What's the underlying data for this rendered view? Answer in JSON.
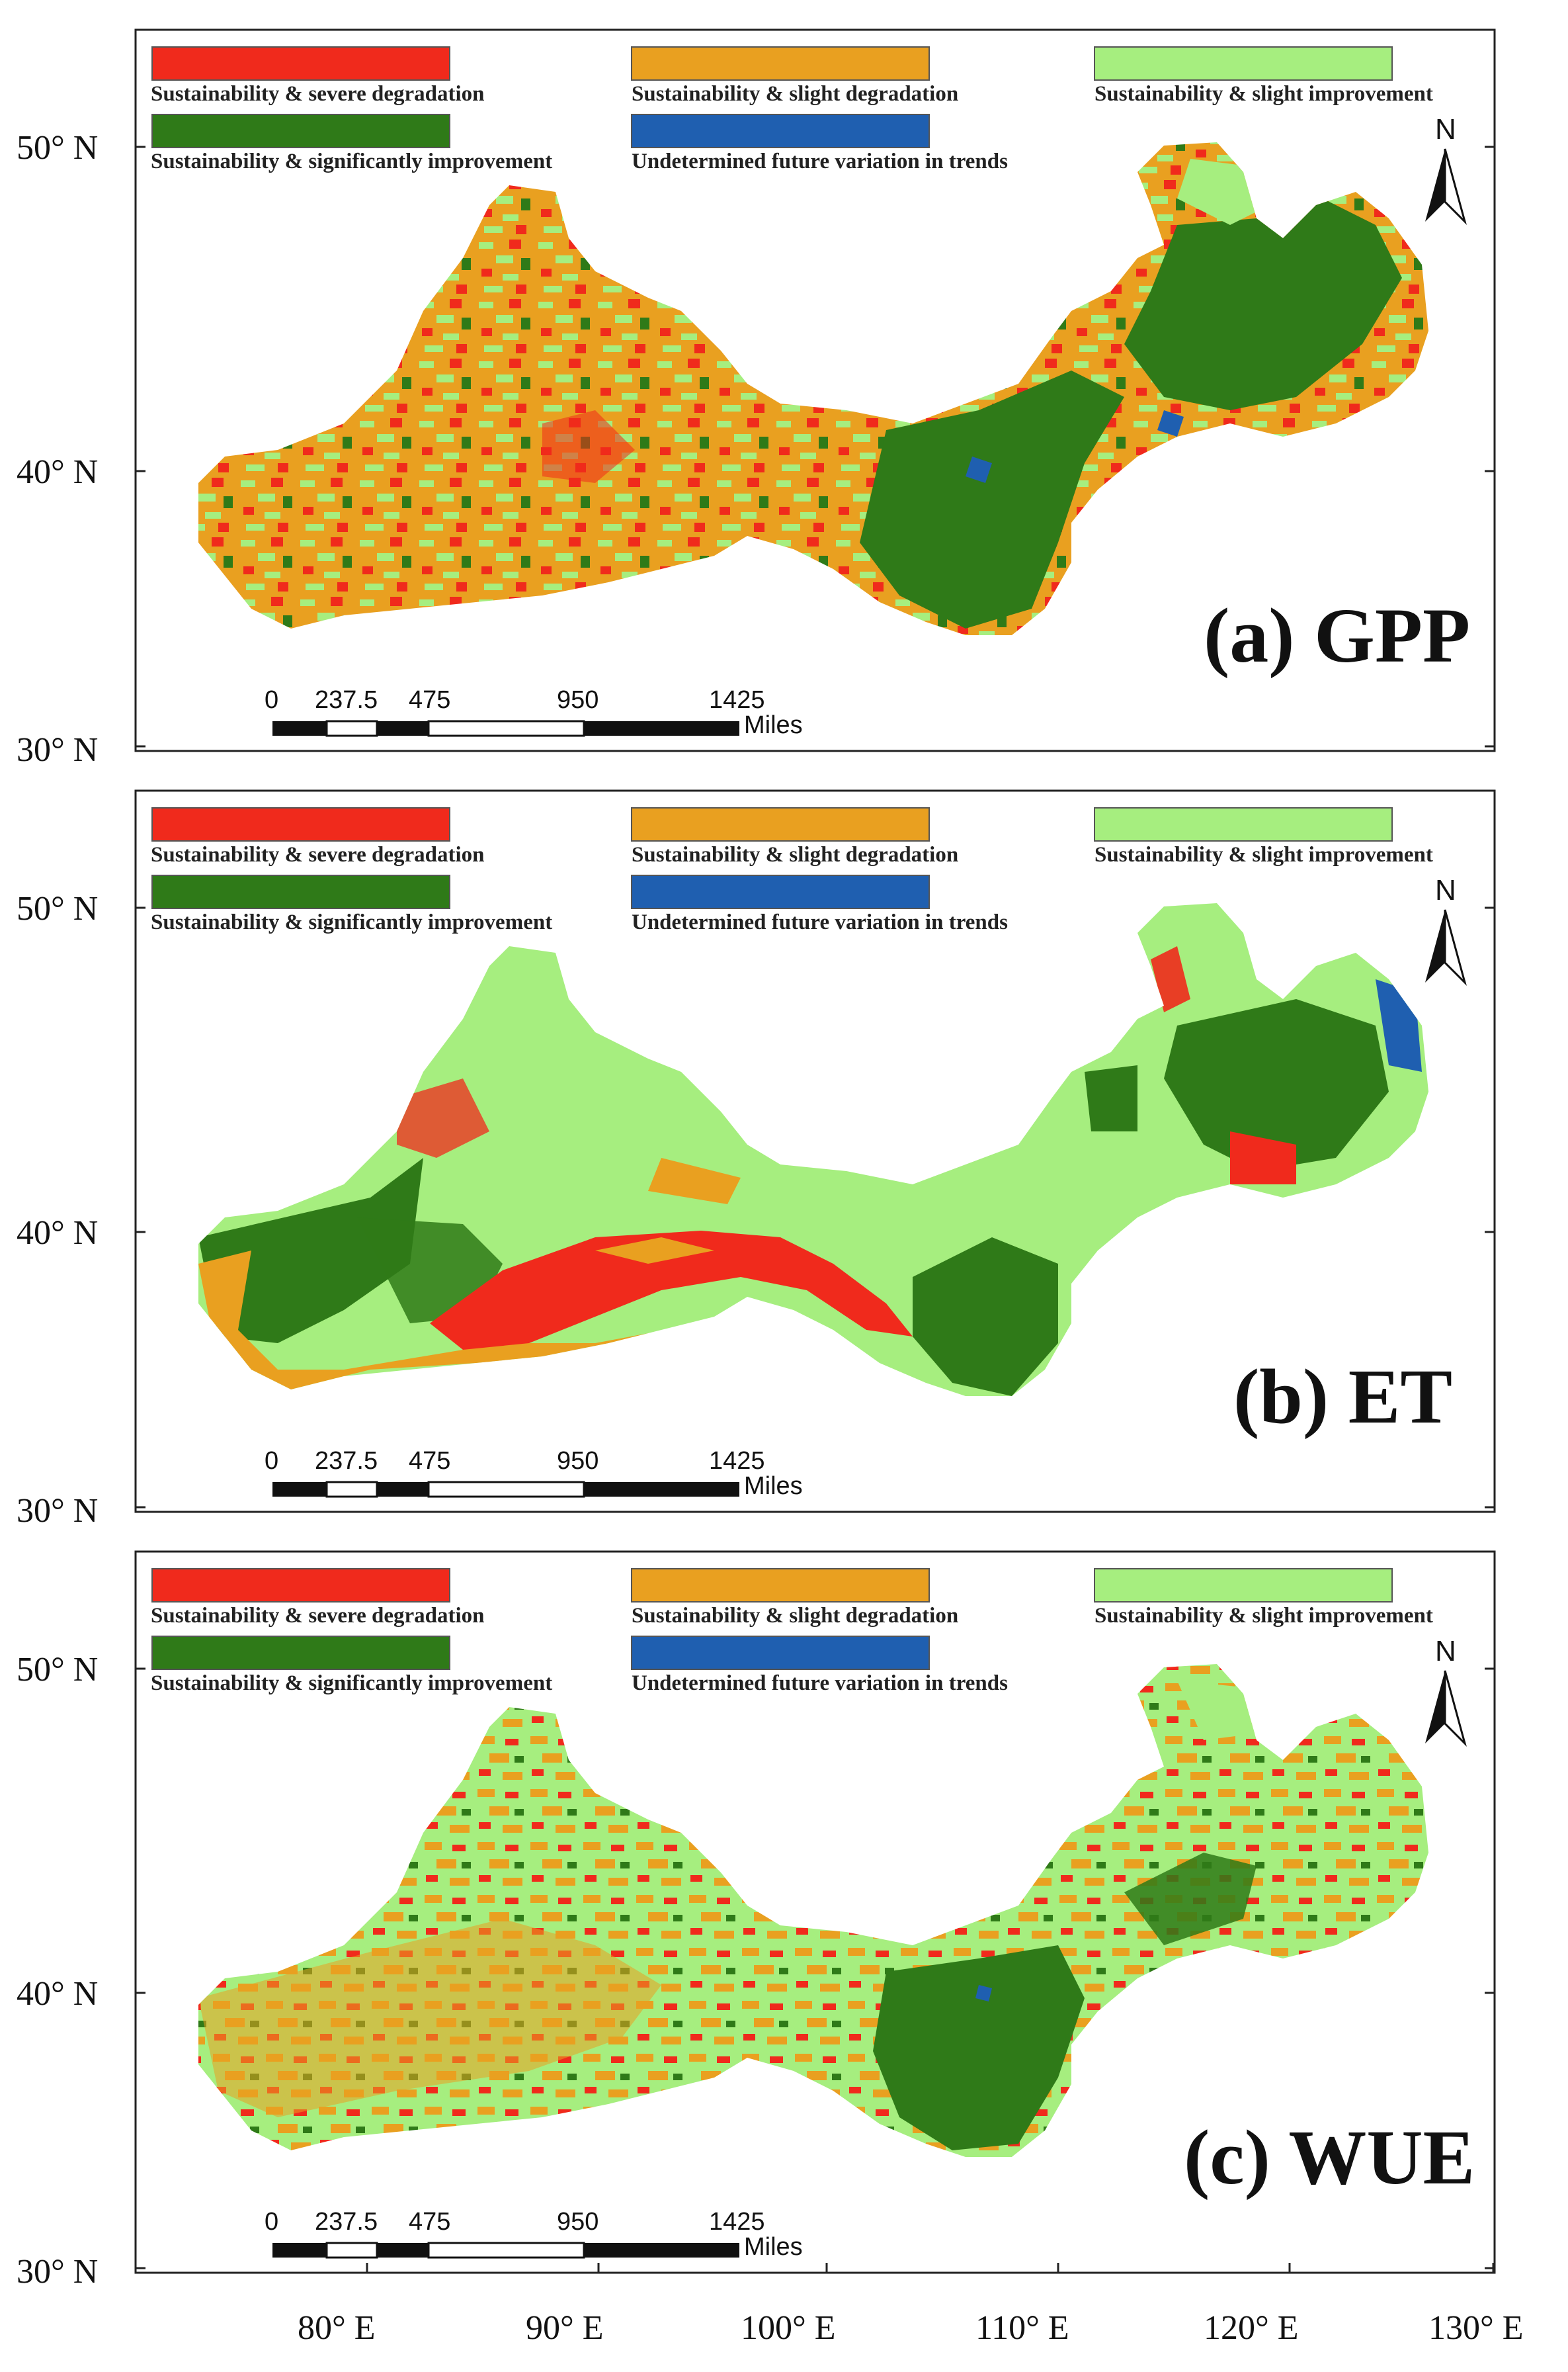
{
  "colors": {
    "severe": "#f02a1c",
    "slight_deg": "#e9a020",
    "slight_imp": "#a6ee7f",
    "significant": "#2f7a18",
    "undetermined": "#1f5fb0"
  },
  "legend": [
    {
      "key": "severe",
      "label": "Sustainability & severe degradation"
    },
    {
      "key": "slight_deg",
      "label": "Sustainability & slight degradation"
    },
    {
      "key": "slight_imp",
      "label": "Sustainability & slight improvement"
    },
    {
      "key": "significant",
      "label": "Sustainability & significantly improvement"
    },
    {
      "key": "undetermined",
      "label": "Undetermined future variation in trends"
    }
  ],
  "lat_labels": [
    "50° N",
    "40° N",
    "30° N"
  ],
  "lon_labels": [
    "80° E",
    "90° E",
    "100° E",
    "110° E",
    "120° E",
    "130° E"
  ],
  "scale_bar": {
    "ticks": [
      "0",
      "237.5",
      "475",
      "950",
      "1425"
    ],
    "unit": "Miles"
  },
  "north_label": "N",
  "panels": [
    {
      "id": "gpp",
      "title": "(a) GPP"
    },
    {
      "id": "et",
      "title": "(b) ET"
    },
    {
      "id": "wue",
      "title": "(c) WUE"
    }
  ]
}
